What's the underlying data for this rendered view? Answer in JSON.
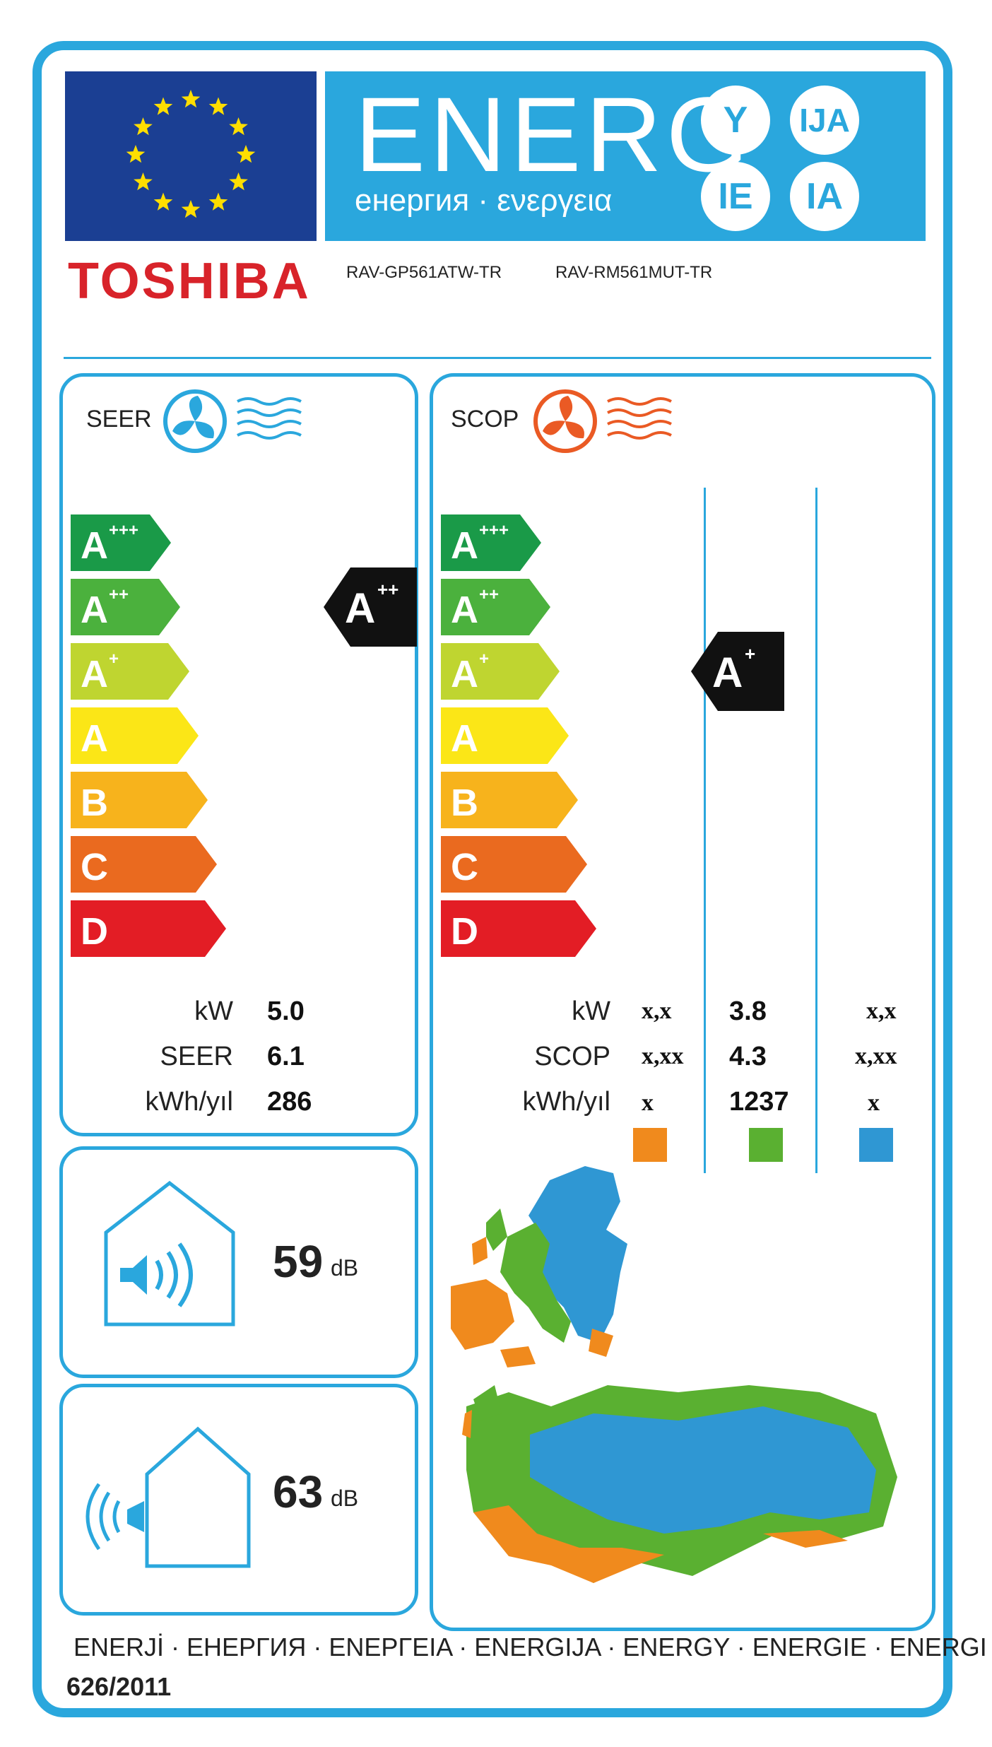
{
  "header": {
    "energy_word": "ENERG",
    "energy_sub": "енергия · ενεργεια",
    "suffixes": [
      "Y",
      "IJA",
      "IE",
      "IA"
    ],
    "brand": "TOSHIBA",
    "model_indoor": "RAV-GP561ATW-TR",
    "model_outdoor": "RAV-RM561MUT-TR"
  },
  "colors": {
    "accent": "#2aa7dd",
    "eu_blue": "#1b3f93",
    "brand_red": "#d8232a",
    "class_colors": [
      "#1a9a48",
      "#4bb13d",
      "#bfd530",
      "#fbe617",
      "#f7b31c",
      "#ea6a1f",
      "#e31d25"
    ],
    "zone_warm": "#f08a1d",
    "zone_average": "#5ab031",
    "zone_cold": "#2f97d3"
  },
  "icons": {
    "seer": "cooling-fan-icon",
    "scop": "heating-fan-icon",
    "indoor_noise": "indoor-speaker-icon",
    "outdoor_noise": "outdoor-speaker-icon"
  },
  "classes": [
    {
      "letter": "A",
      "plus": "+++"
    },
    {
      "letter": "A",
      "plus": "++"
    },
    {
      "letter": "A",
      "plus": "+"
    },
    {
      "letter": "A",
      "plus": ""
    },
    {
      "letter": "B",
      "plus": ""
    },
    {
      "letter": "C",
      "plus": ""
    },
    {
      "letter": "D",
      "plus": ""
    }
  ],
  "seer": {
    "title": "SEER",
    "rating": {
      "letter": "A",
      "plus": "++"
    },
    "rows": [
      {
        "label": "kW",
        "value": "5.0"
      },
      {
        "label": "SEER",
        "value": "6.1"
      },
      {
        "label": "kWh/yıl",
        "value": "286"
      }
    ]
  },
  "scop": {
    "title": "SCOP",
    "rating": {
      "letter": "A",
      "plus": "+"
    },
    "labels": [
      "kW",
      "SCOP",
      "kWh/yıl"
    ],
    "columns": [
      {
        "zone": "warm",
        "values": [
          "x,x",
          "x,xx",
          "x"
        ]
      },
      {
        "zone": "average",
        "values": [
          "3.8",
          "4.3",
          "1237"
        ]
      },
      {
        "zone": "cold",
        "values": [
          "x,x",
          "x,xx",
          "x"
        ]
      }
    ]
  },
  "noise": {
    "indoor": {
      "value": "59",
      "unit": "dB"
    },
    "outdoor": {
      "value": "63",
      "unit": "dB"
    }
  },
  "footer": {
    "languages": "ENERJİ · ЕНЕРГИЯ · ΕΝΕΡΓΕΙΑ · ENERGIJA · ENERGY · ENERGIE · ENERGI",
    "regulation": "626/2011"
  }
}
